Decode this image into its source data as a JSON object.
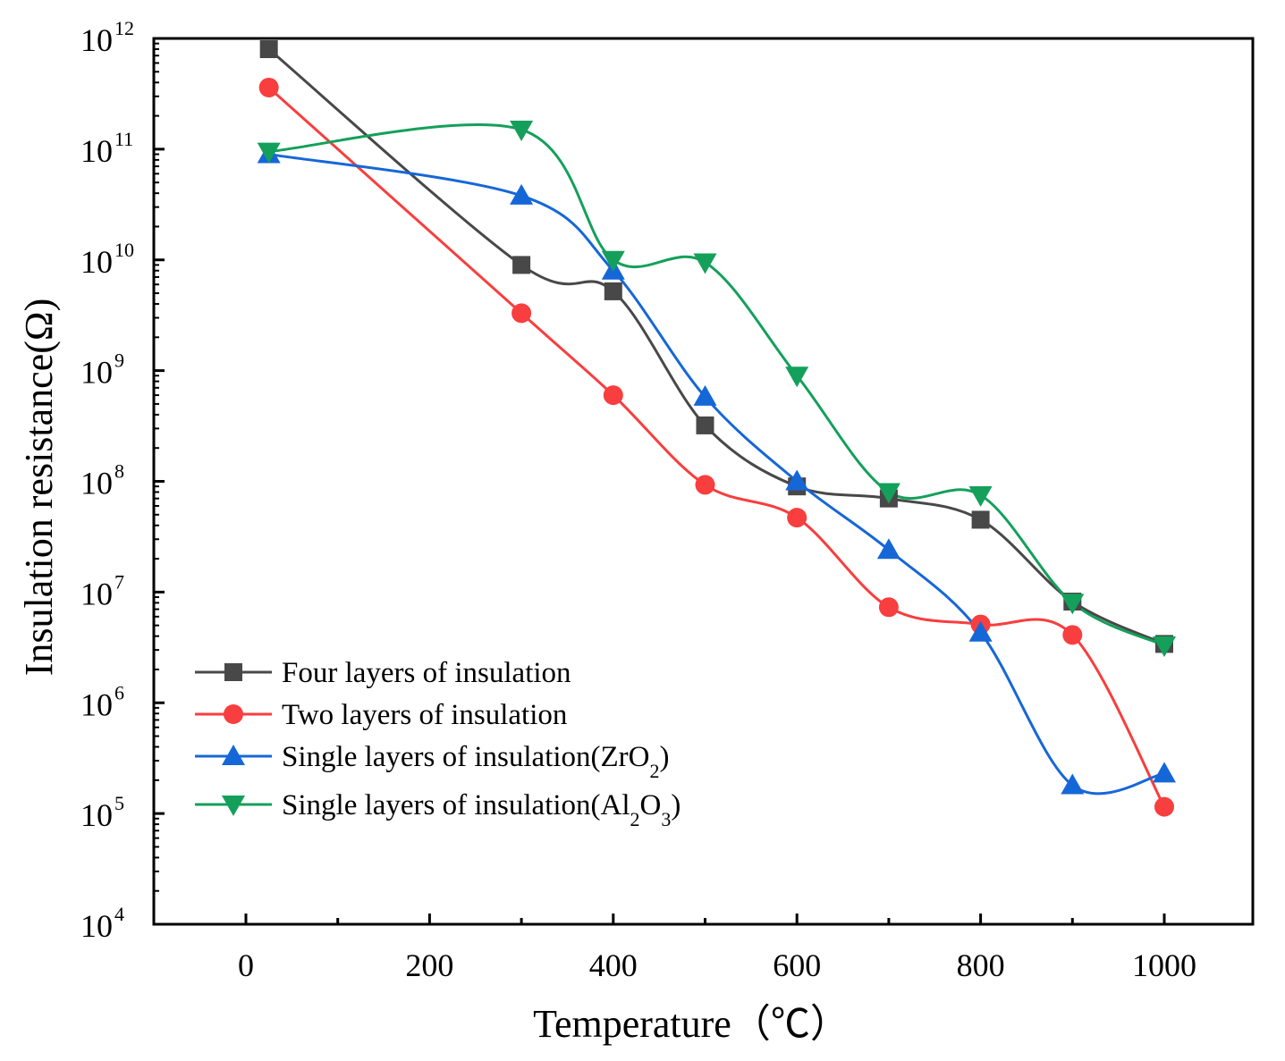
{
  "chart_data": {
    "type": "line",
    "title": "",
    "xlabel": "Temperature（℃）",
    "ylabel": "Insulation resistance(Ω)",
    "xlim": [
      -100,
      1100
    ],
    "ylim_log10": [
      4,
      12
    ],
    "yscale": "log",
    "xticks": [
      0,
      200,
      400,
      600,
      800,
      1000
    ],
    "xticks_minor": [
      100,
      300,
      500,
      700,
      900
    ],
    "yticks": [
      {
        "base": "10",
        "exp": "12",
        "value": 12
      },
      {
        "base": "10",
        "exp": "11",
        "value": 11
      },
      {
        "base": "10",
        "exp": "10",
        "value": 10
      },
      {
        "base": "10",
        "exp": "9",
        "value": 9
      },
      {
        "base": "10",
        "exp": "8",
        "value": 8
      },
      {
        "base": "10",
        "exp": "7",
        "value": 7
      },
      {
        "base": "10",
        "exp": "6",
        "value": 6
      },
      {
        "base": "10",
        "exp": "5",
        "value": 5
      },
      {
        "base": "10",
        "exp": "4",
        "value": 4
      }
    ],
    "legend_position": "bottom-left",
    "series": [
      {
        "name": "Four layers of insulation",
        "label_parts": [
          {
            "t": "Four layers of insulation",
            "s": ""
          }
        ],
        "color": "#484848",
        "marker": "square",
        "x": [
          25,
          300,
          400,
          500,
          600,
          700,
          800,
          900,
          1000
        ],
        "y": [
          800000000000.0,
          9000000000.0,
          5200000000.0,
          320000000.0,
          90000000.0,
          70000000.0,
          45000000.0,
          8200000.0,
          3400000.0
        ]
      },
      {
        "name": "Two layers of insulation",
        "label_parts": [
          {
            "t": "Two layers of insulation",
            "s": ""
          }
        ],
        "color": "#f83e3e",
        "marker": "circle",
        "x": [
          25,
          300,
          400,
          500,
          600,
          700,
          800,
          900,
          1000
        ],
        "y": [
          360000000000.0,
          3300000000.0,
          600000000.0,
          93000000.0,
          47000000.0,
          7300000.0,
          5100000.0,
          4100000.0,
          115000.0
        ]
      },
      {
        "name": "Single layers of insulation(ZrO2)",
        "label_parts": [
          {
            "t": "Single layers of insulation(ZrO",
            "s": ""
          },
          {
            "t": "2",
            "s": "sub"
          },
          {
            "t": ")",
            "s": ""
          }
        ],
        "color": "#1567d8",
        "marker": "triangle-up",
        "x": [
          25,
          300,
          400,
          500,
          600,
          700,
          800,
          900,
          1000
        ],
        "y": [
          90000000000.0,
          38000000000.0,
          8000000000.0,
          580000000.0,
          100000000.0,
          24000000.0,
          4300000.0,
          180000.0,
          230000.0
        ]
      },
      {
        "name": "Single layers of insulation(Al2O3)",
        "label_parts": [
          {
            "t": "Single layers of insulation(Al",
            "s": ""
          },
          {
            "t": "2",
            "s": "sub"
          },
          {
            "t": "O",
            "s": ""
          },
          {
            "t": "3",
            "s": "sub"
          },
          {
            "t": ")",
            "s": ""
          }
        ],
        "color": "#14a05a",
        "marker": "triangle-down",
        "x": [
          25,
          300,
          400,
          500,
          600,
          700,
          800,
          900,
          1000
        ],
        "y": [
          95000000000.0,
          150000000000.0,
          10000000000.0,
          9500000000.0,
          900000000.0,
          80000000.0,
          75000000.0,
          8000000.0,
          3300000.0
        ]
      }
    ]
  }
}
